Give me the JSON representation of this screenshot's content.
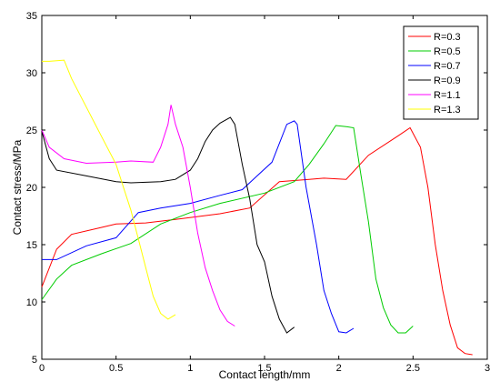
{
  "chart_data": {
    "type": "line",
    "xlabel": "Contact length/mm",
    "ylabel": "Contact stress/MPa",
    "xlim": [
      0,
      3
    ],
    "ylim": [
      5,
      35
    ],
    "x_ticks": [
      0,
      0.5,
      1,
      1.5,
      2,
      2.5,
      3
    ],
    "y_ticks": [
      5,
      10,
      15,
      20,
      25,
      30,
      35
    ],
    "x_tick_labels": [
      "0",
      "0.5",
      "1",
      "1.5",
      "2",
      "2.5",
      "3"
    ],
    "y_tick_labels": [
      "5",
      "10",
      "15",
      "20",
      "25",
      "30",
      "35"
    ],
    "grid": false,
    "legend_position": "top-right",
    "series": [
      {
        "name": "R=0.3",
        "color": "#ff0000",
        "points": [
          [
            0,
            11.3
          ],
          [
            0.1,
            14.6
          ],
          [
            0.2,
            15.9
          ],
          [
            0.4,
            16.5
          ],
          [
            0.5,
            16.8
          ],
          [
            0.7,
            16.9
          ],
          [
            0.9,
            17.2
          ],
          [
            1.2,
            17.7
          ],
          [
            1.4,
            18.2
          ],
          [
            1.6,
            20.5
          ],
          [
            1.8,
            20.7
          ],
          [
            1.9,
            20.8
          ],
          [
            2.05,
            20.7
          ],
          [
            2.2,
            22.8
          ],
          [
            2.4,
            24.5
          ],
          [
            2.48,
            25.2
          ],
          [
            2.55,
            23.5
          ],
          [
            2.6,
            20
          ],
          [
            2.65,
            15
          ],
          [
            2.7,
            11
          ],
          [
            2.75,
            8
          ],
          [
            2.8,
            6
          ],
          [
            2.85,
            5.5
          ],
          [
            2.9,
            5.4
          ]
        ]
      },
      {
        "name": "R=0.5",
        "color": "#00cc00",
        "points": [
          [
            0,
            10.2
          ],
          [
            0.1,
            12
          ],
          [
            0.2,
            13.2
          ],
          [
            0.4,
            14.2
          ],
          [
            0.6,
            15.1
          ],
          [
            0.8,
            16.8
          ],
          [
            1.0,
            17.8
          ],
          [
            1.2,
            18.6
          ],
          [
            1.5,
            19.5
          ],
          [
            1.7,
            20.5
          ],
          [
            1.8,
            22
          ],
          [
            1.9,
            23.8
          ],
          [
            1.98,
            25.4
          ],
          [
            2.05,
            25.3
          ],
          [
            2.1,
            25.2
          ],
          [
            2.15,
            21
          ],
          [
            2.2,
            17
          ],
          [
            2.25,
            12
          ],
          [
            2.3,
            9.5
          ],
          [
            2.35,
            8
          ],
          [
            2.4,
            7.3
          ],
          [
            2.45,
            7.3
          ],
          [
            2.5,
            7.9
          ]
        ]
      },
      {
        "name": "R=0.7",
        "color": "#0000ff",
        "points": [
          [
            0,
            13.7
          ],
          [
            0.1,
            13.7
          ],
          [
            0.3,
            14.9
          ],
          [
            0.5,
            15.6
          ],
          [
            0.65,
            17.8
          ],
          [
            0.8,
            18.2
          ],
          [
            1.0,
            18.6
          ],
          [
            1.2,
            19.3
          ],
          [
            1.35,
            19.8
          ],
          [
            1.45,
            21
          ],
          [
            1.55,
            22.2
          ],
          [
            1.65,
            25.5
          ],
          [
            1.7,
            25.8
          ],
          [
            1.72,
            25.5
          ],
          [
            1.78,
            20
          ],
          [
            1.85,
            15
          ],
          [
            1.9,
            11
          ],
          [
            1.95,
            9
          ],
          [
            2.0,
            7.4
          ],
          [
            2.05,
            7.3
          ],
          [
            2.1,
            7.7
          ]
        ]
      },
      {
        "name": "R=0.9",
        "color": "#000000",
        "points": [
          [
            0,
            24.9
          ],
          [
            0.05,
            22.5
          ],
          [
            0.1,
            21.5
          ],
          [
            0.3,
            21
          ],
          [
            0.5,
            20.5
          ],
          [
            0.6,
            20.4
          ],
          [
            0.8,
            20.5
          ],
          [
            0.9,
            20.7
          ],
          [
            1.0,
            21.5
          ],
          [
            1.05,
            22.5
          ],
          [
            1.1,
            24
          ],
          [
            1.15,
            25
          ],
          [
            1.2,
            25.6
          ],
          [
            1.27,
            26.1
          ],
          [
            1.3,
            25.5
          ],
          [
            1.35,
            22
          ],
          [
            1.4,
            19
          ],
          [
            1.45,
            15
          ],
          [
            1.5,
            13.5
          ],
          [
            1.55,
            10.5
          ],
          [
            1.6,
            8.5
          ],
          [
            1.65,
            7.3
          ],
          [
            1.7,
            7.8
          ]
        ]
      },
      {
        "name": "R=1.1",
        "color": "#ff00ff",
        "points": [
          [
            0,
            25
          ],
          [
            0.05,
            23.5
          ],
          [
            0.15,
            22.5
          ],
          [
            0.3,
            22.1
          ],
          [
            0.5,
            22.2
          ],
          [
            0.6,
            22.3
          ],
          [
            0.75,
            22.2
          ],
          [
            0.8,
            23.5
          ],
          [
            0.85,
            25.5
          ],
          [
            0.87,
            27.2
          ],
          [
            0.9,
            25.5
          ],
          [
            0.95,
            23.5
          ],
          [
            1.0,
            20
          ],
          [
            1.05,
            16
          ],
          [
            1.1,
            13
          ],
          [
            1.15,
            11
          ],
          [
            1.2,
            9.3
          ],
          [
            1.25,
            8.3
          ],
          [
            1.3,
            7.9
          ]
        ]
      },
      {
        "name": "R=1.3",
        "color": "#ffff00",
        "points": [
          [
            0,
            31
          ],
          [
            0.05,
            31
          ],
          [
            0.15,
            31.1
          ],
          [
            0.2,
            29.5
          ],
          [
            0.3,
            27
          ],
          [
            0.4,
            24.5
          ],
          [
            0.5,
            22
          ],
          [
            0.55,
            20
          ],
          [
            0.6,
            18
          ],
          [
            0.65,
            15.5
          ],
          [
            0.7,
            13
          ],
          [
            0.75,
            10.5
          ],
          [
            0.8,
            9
          ],
          [
            0.85,
            8.5
          ],
          [
            0.9,
            8.9
          ]
        ]
      }
    ]
  }
}
